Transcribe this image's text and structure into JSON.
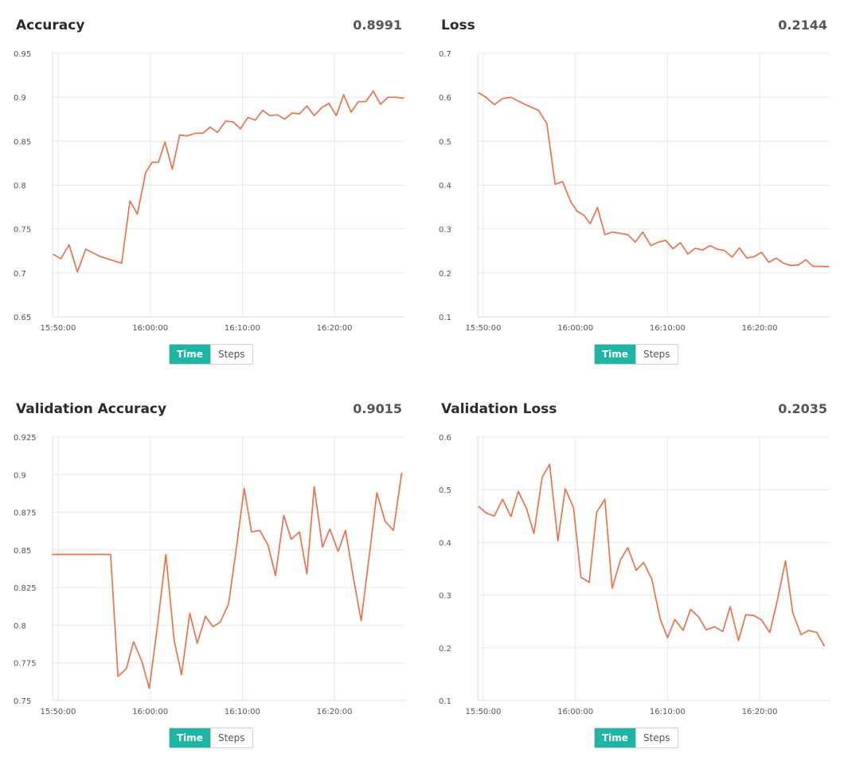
{
  "toggle": {
    "time_label": "Time",
    "steps_label": "Steps"
  },
  "colors": {
    "line": "#e8734f",
    "grid": "#e8e8ec",
    "accent": "#1fb5a5"
  },
  "chart_data": [
    {
      "type": "line",
      "title": "Accuracy",
      "current_value": "0.8991",
      "xlabel": "",
      "ylabel": "",
      "ylim": [
        0.65,
        0.95
      ],
      "yticks": [
        "0.95",
        "0.9",
        "0.85",
        "0.8",
        "0.75",
        "0.7",
        "0.65"
      ],
      "ytick_values": [
        0.95,
        0.9,
        0.85,
        0.8,
        0.75,
        0.7,
        0.65
      ],
      "xticks": [
        "15:50:00",
        "16:00:00",
        "16:10:00",
        "16:20:00"
      ],
      "x_domain_minutes": [
        -0.6,
        37.6
      ],
      "x_tick_minutes": [
        0,
        10,
        20,
        30
      ],
      "grid": true,
      "x_minutes": [
        -0.5,
        0.3,
        1.2,
        2.1,
        3.0,
        4.5,
        6.0,
        6.9,
        7.8,
        8.6,
        9.5,
        10.2,
        10.9,
        11.6,
        12.4,
        13.2,
        14.0,
        14.9,
        15.7,
        16.5,
        17.3,
        18.2,
        19.0,
        19.8,
        20.6,
        21.4,
        22.2,
        23.0,
        23.8,
        24.6,
        25.4,
        26.2,
        27.0,
        27.8,
        28.6,
        29.4,
        30.2,
        31.0,
        31.8,
        32.6,
        33.4,
        34.2,
        35.0,
        35.8,
        36.6,
        37.5
      ],
      "values": [
        0.721,
        0.716,
        0.732,
        0.701,
        0.727,
        0.719,
        0.714,
        0.711,
        0.782,
        0.767,
        0.814,
        0.826,
        0.826,
        0.849,
        0.818,
        0.857,
        0.856,
        0.859,
        0.859,
        0.866,
        0.86,
        0.873,
        0.872,
        0.864,
        0.877,
        0.874,
        0.885,
        0.879,
        0.88,
        0.875,
        0.882,
        0.881,
        0.89,
        0.879,
        0.888,
        0.893,
        0.879,
        0.903,
        0.883,
        0.895,
        0.895,
        0.907,
        0.892,
        0.9,
        0.9,
        0.899
      ]
    },
    {
      "type": "line",
      "title": "Loss",
      "current_value": "0.2144",
      "xlabel": "",
      "ylabel": "",
      "ylim": [
        0.1,
        0.7
      ],
      "yticks": [
        "0.7",
        "0.6",
        "0.5",
        "0.4",
        "0.3",
        "0.2",
        "0.1"
      ],
      "ytick_values": [
        0.7,
        0.6,
        0.5,
        0.4,
        0.3,
        0.2,
        0.1
      ],
      "xticks": [
        "15:50:00",
        "16:00:00",
        "16:10:00",
        "16:20:00"
      ],
      "x_domain_minutes": [
        -0.6,
        37.6
      ],
      "x_tick_minutes": [
        0,
        10,
        20,
        30
      ],
      "grid": true,
      "x_minutes": [
        -0.5,
        0.3,
        1.2,
        2.1,
        3.0,
        4.5,
        6.0,
        6.9,
        7.8,
        8.6,
        9.5,
        10.2,
        10.9,
        11.6,
        12.4,
        13.2,
        14.0,
        14.9,
        15.7,
        16.5,
        17.3,
        18.2,
        19.0,
        19.8,
        20.6,
        21.4,
        22.2,
        23.0,
        23.8,
        24.6,
        25.4,
        26.2,
        27.0,
        27.8,
        28.6,
        29.4,
        30.2,
        31.0,
        31.8,
        32.6,
        33.4,
        34.2,
        35.0,
        35.8,
        36.6,
        37.5
      ],
      "values": [
        0.61,
        0.6,
        0.583,
        0.597,
        0.6,
        0.584,
        0.57,
        0.54,
        0.402,
        0.408,
        0.362,
        0.34,
        0.332,
        0.312,
        0.349,
        0.287,
        0.293,
        0.29,
        0.287,
        0.27,
        0.293,
        0.262,
        0.27,
        0.274,
        0.255,
        0.269,
        0.243,
        0.256,
        0.252,
        0.262,
        0.254,
        0.251,
        0.236,
        0.257,
        0.234,
        0.237,
        0.247,
        0.224,
        0.234,
        0.222,
        0.217,
        0.218,
        0.23,
        0.215,
        0.215,
        0.214
      ]
    },
    {
      "type": "line",
      "title": "Validation Accuracy",
      "current_value": "0.9015",
      "xlabel": "",
      "ylabel": "",
      "ylim": [
        0.75,
        0.925
      ],
      "yticks": [
        "0.925",
        "0.9",
        "0.875",
        "0.85",
        "0.825",
        "0.8",
        "0.775",
        "0.75"
      ],
      "ytick_values": [
        0.925,
        0.9,
        0.875,
        0.85,
        0.825,
        0.8,
        0.775,
        0.75
      ],
      "xticks": [
        "15:50:00",
        "16:00:00",
        "16:10:00",
        "16:20:00"
      ],
      "x_domain_minutes": [
        -0.6,
        37.6
      ],
      "x_tick_minutes": [
        0,
        10,
        20,
        30
      ],
      "grid": true,
      "x_minutes": [
        -0.6,
        5.7,
        6.5,
        7.4,
        8.2,
        9.1,
        9.9,
        10.8,
        11.7,
        12.6,
        13.4,
        14.3,
        15.1,
        16.0,
        16.8,
        17.6,
        18.5,
        19.3,
        20.2,
        21.0,
        21.9,
        22.8,
        23.6,
        24.5,
        25.3,
        26.2,
        27.0,
        27.8,
        28.7,
        29.5,
        30.4,
        31.2,
        32.1,
        32.9,
        33.8,
        34.6,
        35.5,
        36.4,
        37.3
      ],
      "values": [
        0.847,
        0.847,
        0.766,
        0.771,
        0.789,
        0.776,
        0.758,
        0.8,
        0.847,
        0.79,
        0.767,
        0.808,
        0.788,
        0.806,
        0.799,
        0.802,
        0.814,
        0.849,
        0.891,
        0.862,
        0.863,
        0.853,
        0.833,
        0.873,
        0.857,
        0.862,
        0.834,
        0.892,
        0.852,
        0.864,
        0.849,
        0.863,
        0.83,
        0.803,
        0.847,
        0.888,
        0.869,
        0.863,
        0.901
      ]
    },
    {
      "type": "line",
      "title": "Validation Loss",
      "current_value": "0.2035",
      "xlabel": "",
      "ylabel": "",
      "ylim": [
        0.1,
        0.6
      ],
      "yticks": [
        "0.6",
        "0.5",
        "0.4",
        "0.3",
        "0.2",
        "0.1"
      ],
      "ytick_values": [
        0.6,
        0.5,
        0.4,
        0.3,
        0.2,
        0.1
      ],
      "xticks": [
        "15:50:00",
        "16:00:00",
        "16:10:00",
        "16:20:00"
      ],
      "x_domain_minutes": [
        -0.6,
        37.6
      ],
      "x_tick_minutes": [
        0,
        10,
        20,
        30
      ],
      "grid": true,
      "x_minutes": [
        -0.5,
        0.3,
        1.2,
        2.1,
        3.0,
        3.8,
        4.7,
        5.5,
        6.4,
        7.2,
        8.1,
        8.9,
        9.8,
        10.6,
        11.5,
        12.3,
        13.2,
        14.0,
        14.9,
        15.7,
        16.6,
        17.4,
        18.3,
        19.2,
        20.0,
        20.8,
        21.7,
        22.5,
        23.4,
        24.2,
        25.1,
        26.0,
        26.8,
        27.7,
        28.5,
        29.4,
        30.2,
        31.1,
        31.9,
        32.8,
        33.6,
        34.5,
        35.3,
        36.2,
        37.0
      ],
      "values": [
        0.468,
        0.456,
        0.45,
        0.482,
        0.449,
        0.497,
        0.464,
        0.417,
        0.524,
        0.548,
        0.403,
        0.502,
        0.466,
        0.334,
        0.324,
        0.457,
        0.482,
        0.313,
        0.367,
        0.39,
        0.347,
        0.362,
        0.33,
        0.255,
        0.219,
        0.254,
        0.233,
        0.273,
        0.258,
        0.234,
        0.24,
        0.231,
        0.278,
        0.214,
        0.263,
        0.261,
        0.253,
        0.229,
        0.288,
        0.365,
        0.266,
        0.225,
        0.233,
        0.229,
        0.204
      ]
    }
  ]
}
